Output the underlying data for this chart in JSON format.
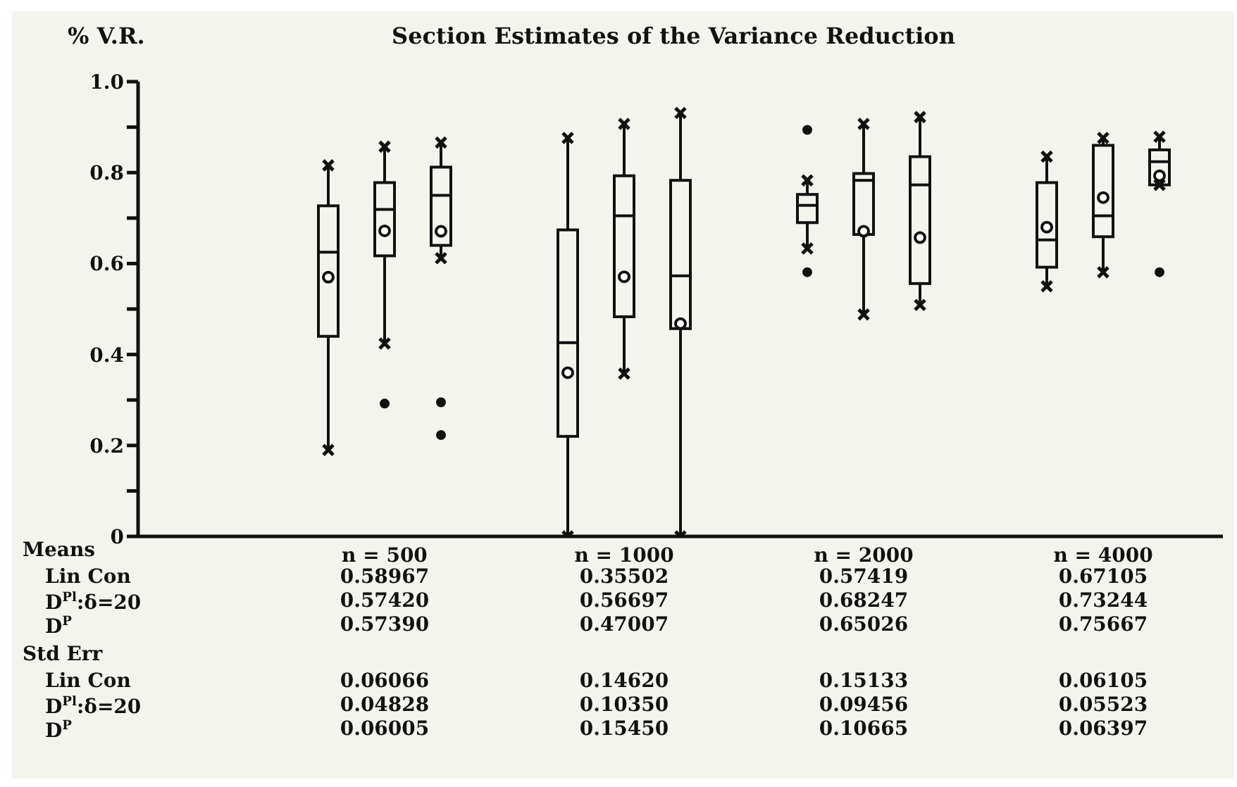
{
  "chart_data": {
    "type": "box",
    "title": "Section Estimates of the Variance Reduction",
    "ylabel": "% V.R.",
    "categories": [
      "n = 500",
      "n = 1000",
      "n = 2000",
      "n = 4000"
    ],
    "series": [
      {
        "color": "#111111",
        "boxes": [
          {
            "low": 0.19,
            "q1": 0.44,
            "median": 0.625,
            "q3": 0.727,
            "high": 0.816,
            "mean": 0.57
          },
          {
            "low": 0,
            "q1": 0.22,
            "median": 0.426,
            "q3": 0.674,
            "high": 0.876,
            "mean": 0.36
          },
          {
            "low": 0.633,
            "q1": 0.69,
            "median": 0.728,
            "q3": 0.752,
            "high": 0.783,
            "outliers": [
              0.894,
              0.581
            ]
          },
          {
            "low": 0.55,
            "q1": 0.592,
            "median": 0.652,
            "q3": 0.778,
            "high": 0.835,
            "mean": 0.68
          }
        ]
      },
      {
        "color": "#111111",
        "boxes": [
          {
            "low": 0.424,
            "q1": 0.617,
            "median": 0.719,
            "q3": 0.778,
            "high": 0.857,
            "mean": 0.672,
            "outliers": [
              0.292
            ]
          },
          {
            "low": 0.358,
            "q1": 0.483,
            "median": 0.705,
            "q3": 0.793,
            "high": 0.907,
            "mean": 0.571
          },
          {
            "low": 0.488,
            "q1": 0.664,
            "median": 0.783,
            "q3": 0.798,
            "high": 0.907,
            "mean": 0.671
          },
          {
            "low": 0.581,
            "q1": 0.659,
            "median": 0.705,
            "q3": 0.86,
            "high": 0.876,
            "mean": 0.745
          }
        ]
      },
      {
        "color": "#111111",
        "boxes": [
          {
            "low": 0.612,
            "q1": 0.64,
            "median": 0.75,
            "q3": 0.812,
            "high": 0.866,
            "mean": 0.671,
            "outliers": [
              0.295,
              0.223
            ]
          },
          {
            "low": 0,
            "q1": 0.457,
            "median": 0.573,
            "q3": 0.783,
            "high": 0.931,
            "mean": 0.468
          },
          {
            "low": 0.509,
            "q1": 0.556,
            "median": 0.773,
            "q3": 0.835,
            "high": 0.922,
            "mean": 0.657
          },
          {
            "low": 0.773,
            "q1": 0.773,
            "median": 0.824,
            "q3": 0.85,
            "high": 0.879,
            "mean": 0.793,
            "outliers": [
              0.581
            ]
          }
        ]
      }
    ],
    "ylim": [
      0,
      1
    ],
    "yticks": [
      0,
      {
        "value": 0.1,
        "label": null
      },
      0.2,
      {
        "value": 0.3,
        "label": null
      },
      0.4,
      {
        "value": 0.5,
        "label": null
      },
      0.6,
      {
        "value": 0.7,
        "label": null
      },
      0.8,
      {
        "value": 0.9,
        "label": null
      },
      {
        "value": 1,
        "label": "1.0"
      }
    ],
    "marker": "cross",
    "annotations": [
      "Means",
      "Std Err",
      "Lin Con",
      "D$^{Pl}$:δ=20",
      "D$^{P}$",
      "0.58967",
      "0.35502",
      "0.57419",
      "0.67105",
      "0.57420",
      "0.56697",
      "0.68247",
      "0.73244",
      "0.57390",
      "0.47007",
      "0.65026",
      "0.75667",
      "0.06066",
      "0.14620",
      "0.15133",
      "0.06105",
      "0.04828",
      "0.10350",
      "0.09456",
      "0.05523",
      "0.06005",
      "0.15450",
      "0.10665",
      "0.06397"
    ]
  }
}
